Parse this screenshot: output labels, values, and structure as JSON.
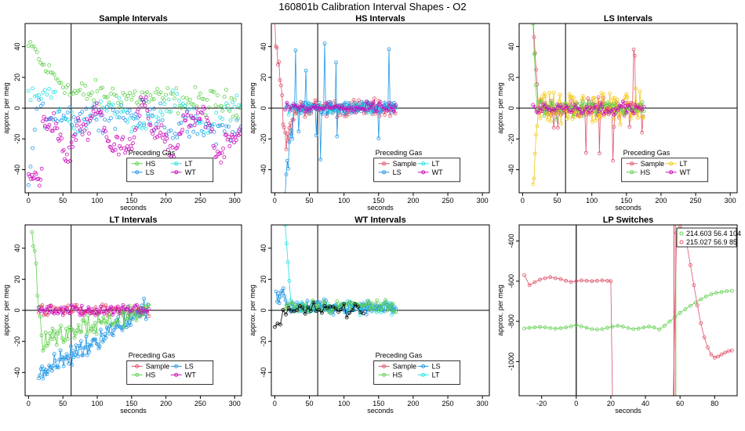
{
  "title": "160801b   Calibration Interval Shapes - O2",
  "colors": {
    "Sample": "#DF536B",
    "HS": "#61D04F",
    "LS": "#2297E6",
    "LT": "#28E2E5",
    "WT": "#CD0BBC",
    "Yellow": "#F5C710",
    "Black": "#000000"
  },
  "chart_data": [
    {
      "type": "scatter",
      "title": "Sample Intervals",
      "xlabel": "seconds",
      "ylabel": "approx. per meg",
      "xlim": [
        -5,
        310
      ],
      "ylim": [
        -55,
        55
      ],
      "xticks": [
        0,
        50,
        100,
        150,
        200,
        250,
        300
      ],
      "yticks": [
        -40,
        -20,
        0,
        20,
        40
      ],
      "vline": 62,
      "hline": 0,
      "legend": {
        "title": "Preceding Gas",
        "entries": [
          "HS",
          "LT",
          "LS",
          "WT"
        ],
        "columns": 2
      },
      "series": [
        {
          "name": "HS",
          "color_key": "HS",
          "pattern": "sample_hs"
        },
        {
          "name": "LT",
          "color_key": "LT",
          "pattern": "sample_lt"
        },
        {
          "name": "LS",
          "color_key": "LS",
          "pattern": "sample_ls"
        },
        {
          "name": "WT",
          "color_key": "WT",
          "pattern": "sample_wt"
        }
      ]
    },
    {
      "type": "line",
      "title": "HS Intervals",
      "xlabel": "seconds",
      "ylabel": "approx. per meg",
      "xlim": [
        -5,
        310
      ],
      "ylim": [
        -55,
        55
      ],
      "xticks": [
        0,
        50,
        100,
        150,
        200,
        250,
        300
      ],
      "yticks": [
        -40,
        -20,
        0,
        20,
        40
      ],
      "vline": 62,
      "hline": 0,
      "legend": {
        "title": "Preceding Gas",
        "entries": [
          "Sample",
          "LT",
          "LS",
          "WT"
        ],
        "columns": 2
      },
      "series": [
        {
          "name": "Sample",
          "color_key": "Sample",
          "pattern": "hs_sample"
        },
        {
          "name": "LT",
          "color_key": "LT",
          "pattern": "noise_small"
        },
        {
          "name": "LS",
          "color_key": "LS",
          "pattern": "hs_ls"
        },
        {
          "name": "WT",
          "color_key": "WT",
          "pattern": "noise_small"
        }
      ]
    },
    {
      "type": "line",
      "title": "LS Intervals",
      "xlabel": "seconds",
      "ylabel": "approx. per meg",
      "xlim": [
        -5,
        310
      ],
      "ylim": [
        -55,
        55
      ],
      "xticks": [
        0,
        50,
        100,
        150,
        200,
        250,
        300
      ],
      "yticks": [
        -40,
        -20,
        0,
        20,
        40
      ],
      "vline": 62,
      "hline": 0,
      "legend": {
        "title": "Preceding Gas",
        "entries": [
          "Sample",
          "LT",
          "HS",
          "WT"
        ],
        "columns": 2
      },
      "series": [
        {
          "name": "Sample",
          "color_key": "Sample",
          "pattern": "ls_sample"
        },
        {
          "name": "LT",
          "color_key": "Yellow",
          "pattern": "ls_yellow"
        },
        {
          "name": "HS",
          "color_key": "HS",
          "pattern": "ls_hs"
        },
        {
          "name": "WT",
          "color_key": "WT",
          "pattern": "noise_small"
        }
      ]
    },
    {
      "type": "line",
      "title": "LT Intervals",
      "xlabel": "seconds",
      "ylabel": "approx. per meg",
      "xlim": [
        -5,
        310
      ],
      "ylim": [
        -55,
        55
      ],
      "xticks": [
        0,
        50,
        100,
        150,
        200,
        250,
        300
      ],
      "yticks": [
        -40,
        -20,
        0,
        20,
        40
      ],
      "vline": 62,
      "hline": 0,
      "legend": {
        "title": "Preceding Gas",
        "entries": [
          "Sample",
          "LS",
          "HS",
          "WT"
        ],
        "columns": 2
      },
      "series": [
        {
          "name": "Sample",
          "color_key": "Sample",
          "pattern": "noise_small"
        },
        {
          "name": "LS",
          "color_key": "LS",
          "pattern": "lt_ls"
        },
        {
          "name": "HS",
          "color_key": "HS",
          "pattern": "lt_hs"
        },
        {
          "name": "WT",
          "color_key": "WT",
          "pattern": "noise_small"
        }
      ]
    },
    {
      "type": "line",
      "title": "WT Intervals",
      "xlabel": "seconds",
      "ylabel": "approx. per meg",
      "xlim": [
        -5,
        310
      ],
      "ylim": [
        -55,
        55
      ],
      "xticks": [
        0,
        50,
        100,
        150,
        200,
        250,
        300
      ],
      "yticks": [
        -40,
        -20,
        0,
        20,
        40
      ],
      "vline": 62,
      "hline": 0,
      "legend": {
        "title": "Preceding Gas",
        "entries": [
          "Sample",
          "LS",
          "HS",
          "LT"
        ],
        "columns": 2
      },
      "series": [
        {
          "name": "LT",
          "color_key": "LT",
          "pattern": "wt_lt"
        },
        {
          "name": "LS",
          "color_key": "LS",
          "pattern": "wt_ls"
        },
        {
          "name": "HS",
          "color_key": "HS",
          "pattern": "wt_hs"
        },
        {
          "name": "Black",
          "color_key": "Black",
          "pattern": "wt_black"
        }
      ]
    },
    {
      "type": "line",
      "title": "LP Switches",
      "xlabel": "seconds",
      "ylabel": "approx. per meg",
      "xlim": [
        -33,
        93
      ],
      "ylim": [
        -1170,
        -320
      ],
      "xticks": [
        -20,
        0,
        20,
        40,
        60,
        80
      ],
      "yticks": [
        -1000,
        -800,
        -600,
        -400
      ],
      "vlines": [
        {
          "x": 0,
          "color_key": "Black"
        },
        {
          "x": 56.5,
          "color_key": "Sample"
        },
        {
          "x": 57.5,
          "color_key": "HS"
        }
      ],
      "legend": {
        "entries": [
          "214.603 56.4 104",
          "215.027 56.9 85"
        ],
        "colors": [
          "HS",
          "Sample"
        ]
      },
      "series": [
        {
          "name": "214.603 56.4 104",
          "color_key": "HS",
          "x": [
            -30,
            -27,
            -24,
            -21,
            -18,
            -15,
            -12,
            -9,
            -6,
            -3,
            0,
            3,
            6,
            9,
            12,
            15,
            18,
            21,
            24,
            27,
            30,
            33,
            36,
            39,
            42,
            45,
            48,
            51,
            54,
            57,
            60,
            63,
            66,
            69,
            72,
            75,
            78,
            81,
            84,
            87,
            90
          ],
          "y": [
            -835,
            -832,
            -830,
            -828,
            -830,
            -833,
            -836,
            -834,
            -830,
            -825,
            -818,
            -825,
            -832,
            -838,
            -840,
            -838,
            -832,
            -826,
            -822,
            -826,
            -833,
            -838,
            -836,
            -830,
            -826,
            -830,
            -840,
            -822,
            -800,
            -778,
            -758,
            -740,
            -722,
            -706,
            -690,
            -676,
            -665,
            -658,
            -654,
            -650,
            -648
          ]
        },
        {
          "name": "215.027 56.9 85",
          "color_key": "Sample",
          "x": [
            -30,
            -27,
            -24,
            -21,
            -18,
            -15,
            -12,
            -9,
            -6,
            -3,
            0,
            3,
            6,
            9,
            12,
            15,
            18,
            20,
            21,
            56,
            58,
            60,
            62,
            64,
            66,
            68,
            70,
            72,
            74,
            76,
            78,
            80,
            82,
            84,
            86,
            88,
            90
          ],
          "y": [
            -570,
            -620,
            -605,
            -592,
            -585,
            -580,
            -585,
            -590,
            -598,
            -604,
            -600,
            -596,
            -598,
            -600,
            -598,
            -596,
            -598,
            -600,
            -1200,
            -1200,
            -360,
            -330,
            -350,
            -420,
            -520,
            -620,
            -720,
            -810,
            -880,
            -930,
            -965,
            -980,
            -975,
            -965,
            -955,
            -948,
            -945
          ]
        }
      ]
    }
  ]
}
